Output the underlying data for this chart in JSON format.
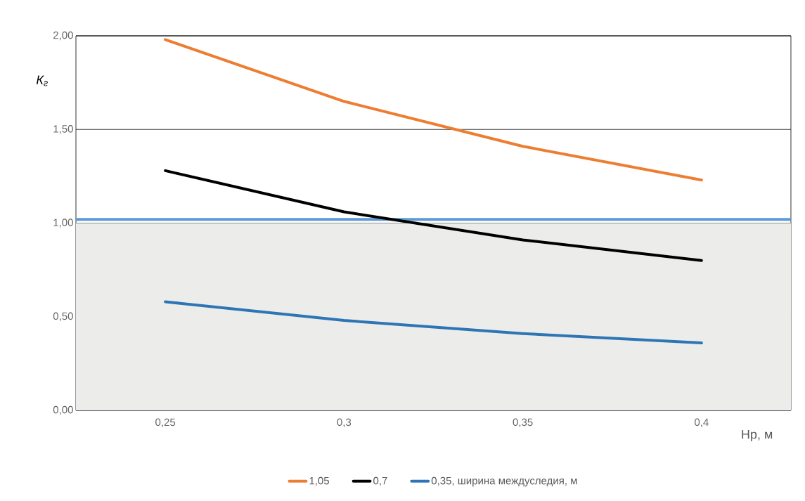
{
  "chart_data": {
    "type": "line",
    "xlabel": "Hр, м",
    "ylabel": "К$_{г}$",
    "categories": [
      "0,25",
      "0,3",
      "0,35",
      "0,4"
    ],
    "series": [
      {
        "name": "1,05",
        "color": "#ed7d31",
        "values": [
          1.98,
          1.65,
          1.41,
          1.23
        ]
      },
      {
        "name": "0,7",
        "color": "#000000",
        "values": [
          1.28,
          1.06,
          0.91,
          0.8
        ]
      },
      {
        "name": "0,35, ширина междуследия, м",
        "color": "#2e75b6",
        "values": [
          0.58,
          0.48,
          0.41,
          0.36
        ]
      }
    ],
    "ylim": [
      0,
      2
    ],
    "yticks": [
      {
        "value": 0,
        "label": "0,00"
      },
      {
        "value": 0.5,
        "label": "0,50"
      },
      {
        "value": 1,
        "label": "1,00"
      },
      {
        "value": 1.5,
        "label": "1,50"
      },
      {
        "value": 2,
        "label": "2,00"
      }
    ],
    "ref_lines": [
      {
        "axis": "y",
        "value": 1.02,
        "color": "#5b9bd5"
      }
    ],
    "bands": [
      {
        "axis": "y",
        "from": 0,
        "to": 1,
        "color": "#ececea"
      }
    ],
    "grid": "y",
    "legend": "bottom",
    "marker": "none",
    "line_style": "solid"
  }
}
